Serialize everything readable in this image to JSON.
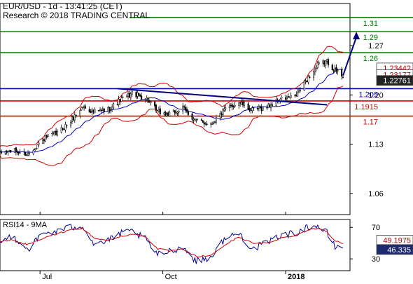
{
  "header": {
    "title": "EUR/USD - 1d - 13:41:25 (CET)",
    "credit": "Research © 2018 TRADING CENTRAL"
  },
  "colors": {
    "resistance": "#008000",
    "support": "#d40000",
    "pivot": "#0000c8",
    "trendline": "#000080",
    "bollinger": "#d40000",
    "moving_average": "#0000c8",
    "candle": "#000000",
    "arrow": "#000080",
    "rsi": "#000090",
    "rsi_signal": "#d40000"
  },
  "chart_data": [
    {
      "type": "candlestick",
      "title": "EUR/USD - 1d - 13:41:25 (CET)",
      "subtitle": "Research © 2018 TRADING CENTRAL",
      "x_range": [
        "2017-06-01",
        "2018-02-13"
      ],
      "x_ticks": [
        {
          "date": "2017-07-01",
          "label": "Jul"
        },
        {
          "date": "2017-10-01",
          "label": "Oct"
        },
        {
          "date": "2018-01-01",
          "label": "2018"
        }
      ],
      "ylim": [
        1.03,
        1.33
      ],
      "y_ticks": [
        1.06,
        1.13,
        1.2,
        1.27
      ],
      "grid": false,
      "horizontal_levels": [
        {
          "value": 1.31,
          "label": "1.31",
          "role": "resistance"
        },
        {
          "value": 1.29,
          "label": "1.29",
          "role": "resistance"
        },
        {
          "value": 1.26,
          "label": "1.26",
          "role": "resistance"
        },
        {
          "value": 1.209,
          "label": "1.209",
          "role": "pivot"
        },
        {
          "value": 1.1915,
          "label": "1.1915",
          "role": "support"
        },
        {
          "value": 1.17,
          "label": "1.17",
          "role": "support"
        }
      ],
      "price_badges": [
        {
          "value": 1.23442,
          "label": "1.23442",
          "style": "white"
        },
        {
          "value": 1.23177,
          "label": "1.23177",
          "style": "white"
        },
        {
          "value": 1.22761,
          "label": "1.22761",
          "style": "dark"
        }
      ],
      "trendline": {
        "start": {
          "date": "2017-08-28",
          "value": 1.209
        },
        "end": {
          "date": "2018-02-01",
          "value": 1.186
        }
      },
      "projection_arrow": [
        {
          "date": "2018-02-13",
          "value": 1.2276
        },
        {
          "date": "2018-02-23",
          "value": 1.29
        }
      ],
      "close_anchors": [
        {
          "date": "2017-06-01",
          "value": 1.117
        },
        {
          "date": "2017-06-10",
          "value": 1.121
        },
        {
          "date": "2017-06-22",
          "value": 1.116
        },
        {
          "date": "2017-07-03",
          "value": 1.137
        },
        {
          "date": "2017-07-14",
          "value": 1.146
        },
        {
          "date": "2017-07-24",
          "value": 1.163
        },
        {
          "date": "2017-08-02",
          "value": 1.184
        },
        {
          "date": "2017-08-10",
          "value": 1.176
        },
        {
          "date": "2017-08-20",
          "value": 1.178
        },
        {
          "date": "2017-08-30",
          "value": 1.192
        },
        {
          "date": "2017-09-08",
          "value": 1.202
        },
        {
          "date": "2017-09-18",
          "value": 1.196
        },
        {
          "date": "2017-09-27",
          "value": 1.176
        },
        {
          "date": "2017-10-06",
          "value": 1.172
        },
        {
          "date": "2017-10-16",
          "value": 1.181
        },
        {
          "date": "2017-10-26",
          "value": 1.163
        },
        {
          "date": "2017-11-06",
          "value": 1.159
        },
        {
          "date": "2017-11-16",
          "value": 1.178
        },
        {
          "date": "2017-11-27",
          "value": 1.19
        },
        {
          "date": "2017-12-07",
          "value": 1.178
        },
        {
          "date": "2017-12-18",
          "value": 1.183
        },
        {
          "date": "2017-12-28",
          "value": 1.194
        },
        {
          "date": "2018-01-08",
          "value": 1.197
        },
        {
          "date": "2018-01-17",
          "value": 1.222
        },
        {
          "date": "2018-01-25",
          "value": 1.242
        },
        {
          "date": "2018-02-01",
          "value": 1.248
        },
        {
          "date": "2018-02-07",
          "value": 1.235
        },
        {
          "date": "2018-02-13",
          "value": 1.2276
        }
      ]
    },
    {
      "type": "line",
      "title": "RSI14 - 9MA",
      "x_range": [
        "2017-06-01",
        "2018-02-13"
      ],
      "ylim": [
        15,
        80
      ],
      "y_ticks": [
        30,
        70
      ],
      "grid": false,
      "series": [
        {
          "name": "RSI14",
          "role": "rsi",
          "anchors": [
            {
              "date": "2017-06-01",
              "value": 50
            },
            {
              "date": "2017-06-10",
              "value": 60
            },
            {
              "date": "2017-06-22",
              "value": 42
            },
            {
              "date": "2017-07-03",
              "value": 62
            },
            {
              "date": "2017-07-14",
              "value": 65
            },
            {
              "date": "2017-07-24",
              "value": 70
            },
            {
              "date": "2017-08-02",
              "value": 72
            },
            {
              "date": "2017-08-10",
              "value": 50
            },
            {
              "date": "2017-08-20",
              "value": 52
            },
            {
              "date": "2017-08-30",
              "value": 62
            },
            {
              "date": "2017-09-08",
              "value": 65
            },
            {
              "date": "2017-09-18",
              "value": 55
            },
            {
              "date": "2017-09-27",
              "value": 35
            },
            {
              "date": "2017-10-06",
              "value": 40
            },
            {
              "date": "2017-10-16",
              "value": 45
            },
            {
              "date": "2017-10-26",
              "value": 27
            },
            {
              "date": "2017-11-06",
              "value": 32
            },
            {
              "date": "2017-11-16",
              "value": 55
            },
            {
              "date": "2017-11-27",
              "value": 63
            },
            {
              "date": "2017-12-07",
              "value": 42
            },
            {
              "date": "2017-12-18",
              "value": 50
            },
            {
              "date": "2017-12-28",
              "value": 60
            },
            {
              "date": "2018-01-08",
              "value": 62
            },
            {
              "date": "2018-01-17",
              "value": 70
            },
            {
              "date": "2018-01-25",
              "value": 72
            },
            {
              "date": "2018-02-01",
              "value": 63
            },
            {
              "date": "2018-02-07",
              "value": 45
            },
            {
              "date": "2018-02-13",
              "value": 46.335
            }
          ]
        },
        {
          "name": "9MA",
          "role": "signal",
          "anchors": [
            {
              "date": "2017-06-01",
              "value": 52
            },
            {
              "date": "2017-06-10",
              "value": 54
            },
            {
              "date": "2017-06-22",
              "value": 48
            },
            {
              "date": "2017-07-03",
              "value": 56
            },
            {
              "date": "2017-07-14",
              "value": 62
            },
            {
              "date": "2017-07-24",
              "value": 67
            },
            {
              "date": "2017-08-02",
              "value": 69
            },
            {
              "date": "2017-08-10",
              "value": 57
            },
            {
              "date": "2017-08-20",
              "value": 53
            },
            {
              "date": "2017-08-30",
              "value": 58
            },
            {
              "date": "2017-09-08",
              "value": 62
            },
            {
              "date": "2017-09-18",
              "value": 58
            },
            {
              "date": "2017-09-27",
              "value": 43
            },
            {
              "date": "2017-10-06",
              "value": 40
            },
            {
              "date": "2017-10-16",
              "value": 42
            },
            {
              "date": "2017-10-26",
              "value": 33
            },
            {
              "date": "2017-11-06",
              "value": 34
            },
            {
              "date": "2017-11-16",
              "value": 47
            },
            {
              "date": "2017-11-27",
              "value": 58
            },
            {
              "date": "2017-12-07",
              "value": 50
            },
            {
              "date": "2017-12-18",
              "value": 50
            },
            {
              "date": "2017-12-28",
              "value": 56
            },
            {
              "date": "2018-01-08",
              "value": 60
            },
            {
              "date": "2018-01-17",
              "value": 66
            },
            {
              "date": "2018-01-25",
              "value": 69
            },
            {
              "date": "2018-02-01",
              "value": 65
            },
            {
              "date": "2018-02-07",
              "value": 53
            },
            {
              "date": "2018-02-13",
              "value": 49.1975
            }
          ]
        }
      ],
      "badges": [
        {
          "value": 49.1975,
          "label": "49.1975",
          "role": "signal"
        },
        {
          "value": 46.335,
          "label": "46.335",
          "role": "rsi"
        }
      ]
    }
  ]
}
